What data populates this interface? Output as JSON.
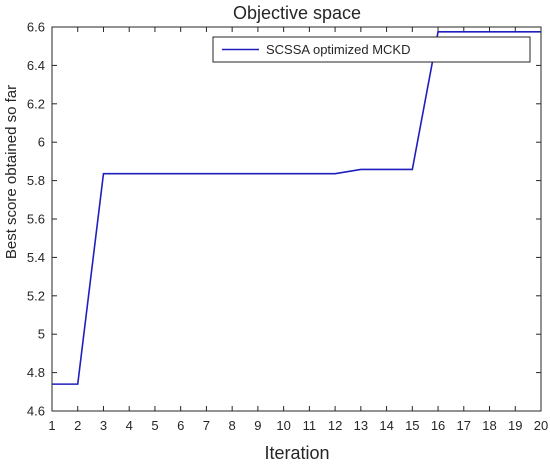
{
  "chart_data": {
    "type": "line",
    "title": "Objective space",
    "xlabel": "Iteration",
    "ylabel": "Best score obtained so far",
    "xlim": [
      1,
      20
    ],
    "ylim": [
      4.6,
      6.6
    ],
    "xticks": [
      1,
      2,
      3,
      4,
      5,
      6,
      7,
      8,
      9,
      10,
      11,
      12,
      13,
      14,
      15,
      16,
      17,
      18,
      19,
      20
    ],
    "yticks": [
      4.6,
      4.8,
      5,
      5.2,
      5.4,
      5.6,
      5.8,
      6,
      6.2,
      6.4,
      6.6
    ],
    "grid": false,
    "legend_position": "top-right",
    "series": [
      {
        "name": "SCSSA optimized MCKD",
        "color": "#1f1fbf",
        "x": [
          1,
          2,
          3,
          4,
          5,
          6,
          7,
          8,
          9,
          10,
          11,
          12,
          13,
          14,
          15,
          16,
          17,
          18,
          19,
          20
        ],
        "y": [
          4.74,
          4.74,
          5.836,
          5.836,
          5.836,
          5.836,
          5.836,
          5.836,
          5.836,
          5.836,
          5.836,
          5.836,
          5.858,
          5.858,
          5.858,
          6.575,
          6.575,
          6.575,
          6.575,
          6.575
        ]
      }
    ]
  }
}
